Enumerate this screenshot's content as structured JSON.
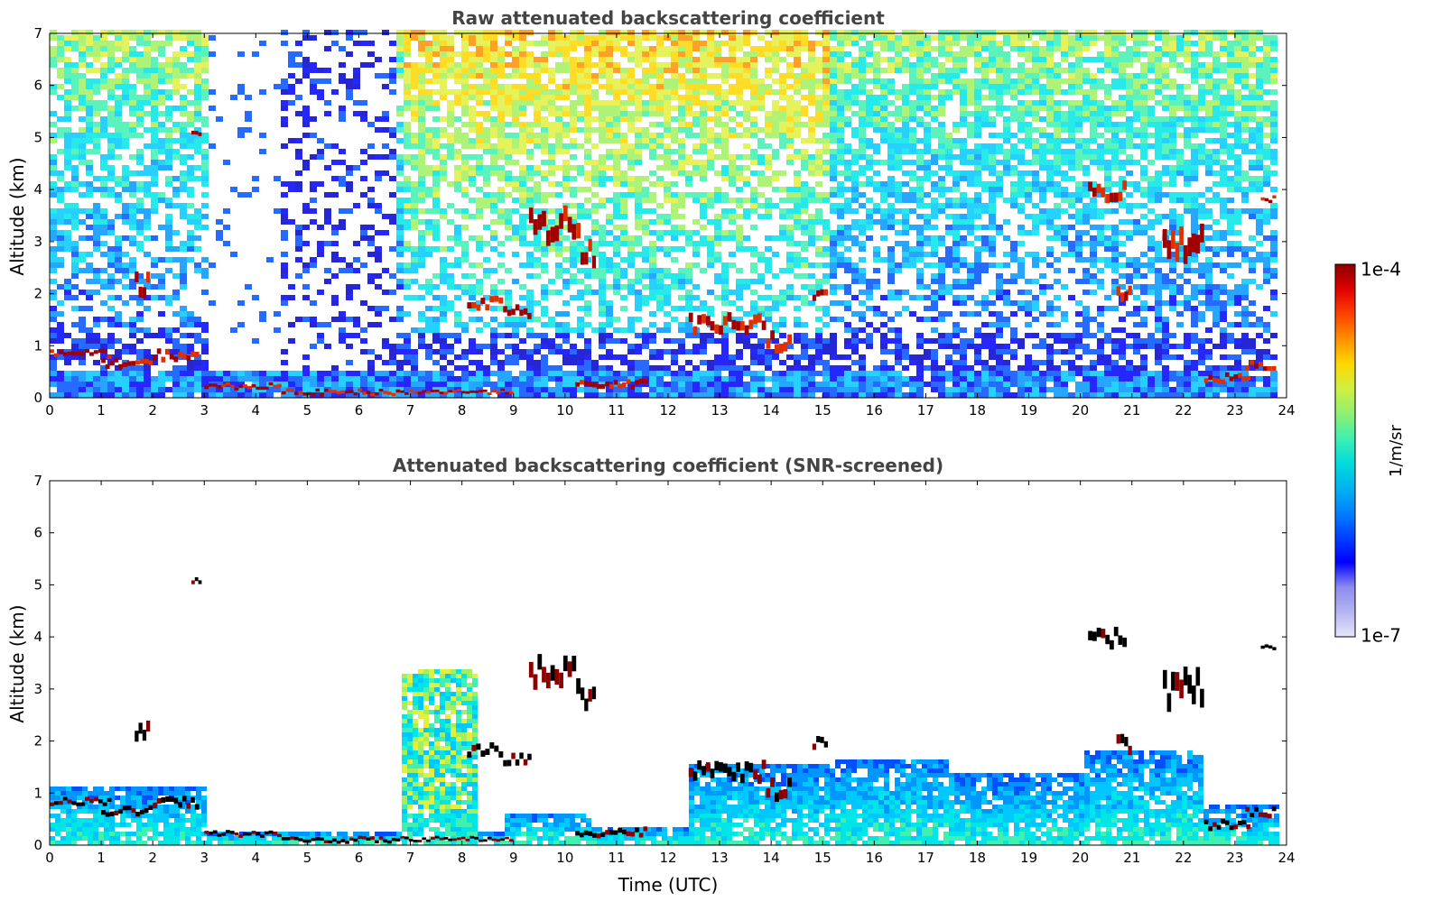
{
  "chart_data": [
    {
      "type": "heatmap",
      "title": "Raw attenuated backscattering coefficient",
      "xlabel": "",
      "ylabel": "Altitude (km)",
      "xlim": [
        0,
        24
      ],
      "ylim": [
        0,
        7
      ],
      "x_ticks": [
        "0",
        "1",
        "2",
        "3",
        "4",
        "5",
        "6",
        "7",
        "8",
        "9",
        "10",
        "11",
        "12",
        "13",
        "14",
        "15",
        "16",
        "17",
        "18",
        "19",
        "20",
        "21",
        "22",
        "23",
        "24"
      ],
      "y_ticks": [
        "0",
        "1",
        "2",
        "3",
        "4",
        "5",
        "6",
        "7"
      ],
      "colorscale": "jet",
      "value_range": [
        "1e-7",
        "1e-4"
      ],
      "screened": false,
      "clouds": [
        {
          "t0": 0.0,
          "t1": 1.2,
          "alt": 0.82,
          "thick": 0.12
        },
        {
          "t0": 1.0,
          "t1": 2.0,
          "alt": 0.62,
          "thick": 0.15
        },
        {
          "t0": 2.0,
          "t1": 2.9,
          "alt": 0.78,
          "thick": 0.18
        },
        {
          "t0": 1.65,
          "t1": 1.95,
          "alt": 2.1,
          "thick": 0.35
        },
        {
          "t0": 2.75,
          "t1": 2.95,
          "alt": 5.05,
          "thick": 0.12
        },
        {
          "t0": 3.0,
          "t1": 4.5,
          "alt": 0.2,
          "thick": 0.1
        },
        {
          "t0": 4.5,
          "t1": 6.8,
          "alt": 0.08,
          "thick": 0.1
        },
        {
          "t0": 6.8,
          "t1": 9.0,
          "alt": 0.1,
          "thick": 0.08
        },
        {
          "t0": 8.1,
          "t1": 8.8,
          "alt": 1.78,
          "thick": 0.2
        },
        {
          "t0": 8.8,
          "t1": 9.35,
          "alt": 1.6,
          "thick": 0.2
        },
        {
          "t0": 9.3,
          "t1": 10.3,
          "alt": 3.2,
          "thick": 0.5
        },
        {
          "t0": 10.3,
          "t1": 10.6,
          "alt": 2.7,
          "thick": 0.4
        },
        {
          "t0": 10.2,
          "t1": 11.6,
          "alt": 0.22,
          "thick": 0.15
        },
        {
          "t0": 12.4,
          "t1": 13.9,
          "alt": 1.35,
          "thick": 0.3
        },
        {
          "t0": 13.9,
          "t1": 14.4,
          "alt": 1.0,
          "thick": 0.3
        },
        {
          "t0": 14.8,
          "t1": 15.1,
          "alt": 1.9,
          "thick": 0.2
        },
        {
          "t0": 20.15,
          "t1": 20.9,
          "alt": 3.9,
          "thick": 0.3
        },
        {
          "t0": 20.7,
          "t1": 21.0,
          "alt": 1.9,
          "thick": 0.3
        },
        {
          "t0": 21.6,
          "t1": 22.4,
          "alt": 2.9,
          "thick": 0.6
        },
        {
          "t0": 22.4,
          "t1": 23.3,
          "alt": 0.35,
          "thick": 0.15
        },
        {
          "t0": 23.2,
          "t1": 23.8,
          "alt": 0.6,
          "thick": 0.15
        },
        {
          "t0": 23.5,
          "t1": 23.8,
          "alt": 3.8,
          "thick": 0.1
        }
      ]
    },
    {
      "type": "heatmap",
      "title": "Attenuated backscattering coefficient (SNR-screened)",
      "xlabel": "Time (UTC)",
      "ylabel": "Altitude (km)",
      "xlim": [
        0,
        24
      ],
      "ylim": [
        0,
        7
      ],
      "x_ticks": [
        "0",
        "1",
        "2",
        "3",
        "4",
        "5",
        "6",
        "7",
        "8",
        "9",
        "10",
        "11",
        "12",
        "13",
        "14",
        "15",
        "16",
        "17",
        "18",
        "19",
        "20",
        "21",
        "22",
        "23",
        "24"
      ],
      "y_ticks": [
        "0",
        "1",
        "2",
        "3",
        "4",
        "5",
        "6",
        "7"
      ],
      "colorscale": "jet",
      "value_range": [
        "1e-7",
        "1e-4"
      ],
      "screened": true,
      "clouds": [
        {
          "t0": 0.0,
          "t1": 1.2,
          "alt": 0.82,
          "thick": 0.12
        },
        {
          "t0": 1.0,
          "t1": 2.0,
          "alt": 0.62,
          "thick": 0.15
        },
        {
          "t0": 2.0,
          "t1": 2.9,
          "alt": 0.78,
          "thick": 0.18
        },
        {
          "t0": 1.65,
          "t1": 1.95,
          "alt": 2.1,
          "thick": 0.35
        },
        {
          "t0": 2.75,
          "t1": 2.95,
          "alt": 5.05,
          "thick": 0.12
        },
        {
          "t0": 3.0,
          "t1": 4.5,
          "alt": 0.2,
          "thick": 0.1
        },
        {
          "t0": 4.5,
          "t1": 6.8,
          "alt": 0.08,
          "thick": 0.1
        },
        {
          "t0": 6.8,
          "t1": 9.0,
          "alt": 0.1,
          "thick": 0.08
        },
        {
          "t0": 8.1,
          "t1": 8.8,
          "alt": 1.78,
          "thick": 0.2
        },
        {
          "t0": 8.8,
          "t1": 9.35,
          "alt": 1.6,
          "thick": 0.2
        },
        {
          "t0": 9.3,
          "t1": 10.3,
          "alt": 3.2,
          "thick": 0.5
        },
        {
          "t0": 10.3,
          "t1": 10.6,
          "alt": 2.7,
          "thick": 0.4
        },
        {
          "t0": 10.2,
          "t1": 11.6,
          "alt": 0.22,
          "thick": 0.15
        },
        {
          "t0": 12.4,
          "t1": 13.9,
          "alt": 1.35,
          "thick": 0.3
        },
        {
          "t0": 13.9,
          "t1": 14.4,
          "alt": 1.0,
          "thick": 0.3
        },
        {
          "t0": 14.8,
          "t1": 15.1,
          "alt": 1.9,
          "thick": 0.2
        },
        {
          "t0": 20.15,
          "t1": 20.9,
          "alt": 3.9,
          "thick": 0.3
        },
        {
          "t0": 20.7,
          "t1": 21.0,
          "alt": 1.9,
          "thick": 0.3
        },
        {
          "t0": 21.6,
          "t1": 22.4,
          "alt": 2.9,
          "thick": 0.6
        },
        {
          "t0": 22.4,
          "t1": 23.3,
          "alt": 0.35,
          "thick": 0.15
        },
        {
          "t0": 23.2,
          "t1": 23.8,
          "alt": 0.6,
          "thick": 0.15
        },
        {
          "t0": 23.5,
          "t1": 23.8,
          "alt": 3.8,
          "thick": 0.1
        }
      ]
    }
  ],
  "colorbar": {
    "label": "1/m/sr",
    "max_label": "1e-4",
    "min_label": "1e-7",
    "colors": [
      "#e6e6fa",
      "#b4b4f0",
      "#8c8cf0",
      "#0000ff",
      "#0040ff",
      "#0080ff",
      "#00b4f0",
      "#00dcdc",
      "#40f0b0",
      "#90f070",
      "#d0f040",
      "#ffd700",
      "#ff9000",
      "#ff4000",
      "#e00000",
      "#8b0000"
    ]
  }
}
